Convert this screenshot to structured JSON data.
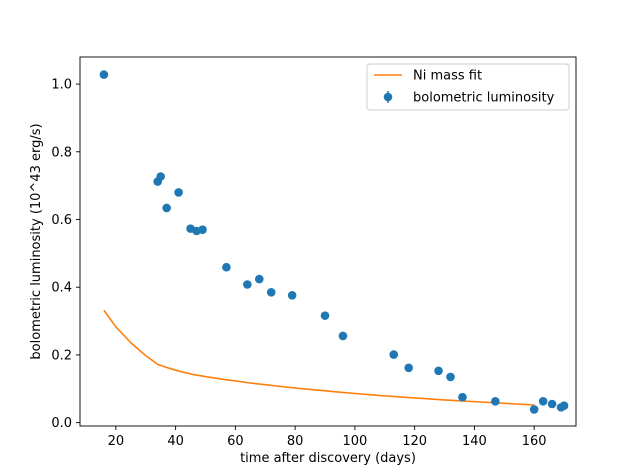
{
  "chart_data": {
    "type": "scatter",
    "xlabel": "time after discovery (days)",
    "ylabel": "bolometric luminosity (10^43 erg/s)",
    "xlim": [
      8,
      174
    ],
    "ylim": [
      -0.01,
      1.08
    ],
    "xticks": [
      20,
      40,
      60,
      80,
      100,
      120,
      140,
      160
    ],
    "yticks": [
      0.0,
      0.2,
      0.4,
      0.6,
      0.8,
      1.0
    ],
    "xtick_labels": [
      "20",
      "40",
      "60",
      "80",
      "100",
      "120",
      "140",
      "160"
    ],
    "ytick_labels": [
      "0.0",
      "0.2",
      "0.4",
      "0.6",
      "0.8",
      "1.0"
    ],
    "grid": false,
    "legend_position": "top-right",
    "series": [
      {
        "name": "Ni mass fit",
        "kind": "line",
        "color": "#ff7f0e",
        "x": [
          16,
          20,
          25,
          30,
          34,
          38,
          42,
          46,
          50,
          55,
          60,
          65,
          70,
          75,
          80,
          85,
          90,
          95,
          100,
          110,
          120,
          130,
          140,
          150,
          160
        ],
        "y": [
          0.332,
          0.283,
          0.236,
          0.198,
          0.172,
          0.16,
          0.15,
          0.142,
          0.136,
          0.129,
          0.123,
          0.117,
          0.112,
          0.107,
          0.102,
          0.098,
          0.094,
          0.09,
          0.086,
          0.079,
          0.073,
          0.067,
          0.062,
          0.057,
          0.052
        ]
      },
      {
        "name": "bolometric luminosity",
        "kind": "errorbar-points",
        "color": "#1f77b4",
        "x": [
          16,
          34,
          35,
          37,
          41,
          45,
          47,
          49,
          57,
          64,
          68,
          72,
          79,
          90,
          96,
          113,
          118,
          128,
          132,
          136,
          147,
          160,
          163,
          166,
          169,
          170
        ],
        "y": [
          1.028,
          0.712,
          0.727,
          0.634,
          0.68,
          0.573,
          0.566,
          0.57,
          0.459,
          0.408,
          0.424,
          0.385,
          0.376,
          0.316,
          0.256,
          0.201,
          0.162,
          0.153,
          0.135,
          0.075,
          0.063,
          0.039,
          0.063,
          0.055,
          0.045,
          0.05
        ]
      }
    ]
  }
}
